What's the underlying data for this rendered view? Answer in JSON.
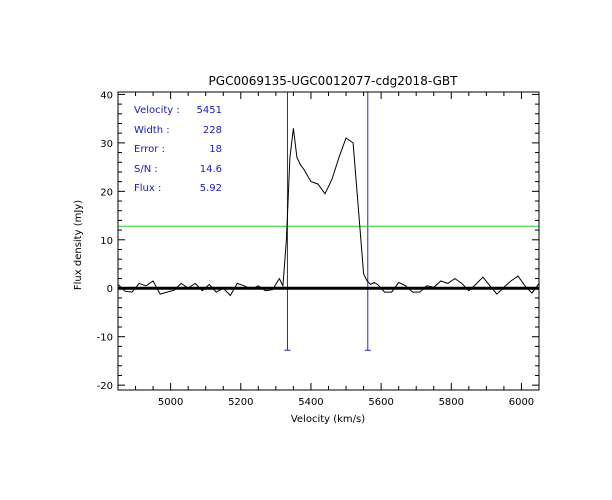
{
  "chart_data": {
    "type": "line",
    "title": "PGC0069135-UGC0012077-cdg2018-GBT",
    "xlabel": "Velocity (km/s)",
    "ylabel": "Flux density (mJy)",
    "xlim": [
      4850,
      6050
    ],
    "ylim": [
      -21,
      40.5
    ],
    "x_ticks": [
      5000,
      5200,
      5400,
      5600,
      5800,
      6000
    ],
    "y_ticks": [
      -20,
      -10,
      0,
      10,
      20,
      30,
      40
    ],
    "series": [
      {
        "name": "spectrum",
        "x": [
          4850,
          4870,
          4890,
          4910,
          4930,
          4950,
          4970,
          4990,
          5010,
          5030,
          5050,
          5070,
          5090,
          5110,
          5130,
          5150,
          5170,
          5190,
          5210,
          5230,
          5250,
          5270,
          5290,
          5310,
          5320,
          5330,
          5340,
          5350,
          5360,
          5370,
          5380,
          5400,
          5420,
          5440,
          5460,
          5480,
          5500,
          5520,
          5540,
          5550,
          5560,
          5570,
          5580,
          5590,
          5610,
          5630,
          5650,
          5670,
          5690,
          5710,
          5730,
          5750,
          5770,
          5790,
          5810,
          5830,
          5850,
          5870,
          5890,
          5910,
          5930,
          5950,
          5970,
          5990,
          6010,
          6030,
          6050
        ],
        "values": [
          0.8,
          -0.6,
          -0.8,
          1.0,
          0.5,
          1.5,
          -1.2,
          -0.8,
          -0.4,
          1.0,
          0.0,
          1.0,
          -0.5,
          0.8,
          -0.8,
          0.0,
          -1.5,
          1.0,
          0.5,
          -0.2,
          0.5,
          -0.5,
          -0.3,
          2.0,
          0.5,
          10.0,
          27.0,
          33.0,
          27.0,
          25.5,
          24.5,
          22.0,
          21.5,
          19.5,
          22.5,
          27.0,
          31.0,
          30.0,
          12.0,
          3.0,
          1.5,
          0.8,
          1.2,
          0.8,
          -0.8,
          -0.8,
          1.2,
          0.5,
          -0.8,
          -0.8,
          0.5,
          0.2,
          1.5,
          1.0,
          2.0,
          1.0,
          -0.5,
          0.8,
          2.3,
          0.5,
          -1.2,
          0.2,
          1.5,
          2.5,
          0.5,
          -1.0,
          1.0
        ]
      }
    ],
    "reference_lines": {
      "zero_level": 0,
      "half_peak_level": 12.8,
      "left_edge_velocity": 5333,
      "right_edge_velocity": 5562,
      "edge_marker_bottom": -12.8,
      "zero_color": "#000000",
      "half_peak_color": "#22cc22",
      "edge_color": "#3a1ea8",
      "spectrum_color": "#000000"
    },
    "info": [
      {
        "label": "Velocity :",
        "value": "5451"
      },
      {
        "label": "Width :",
        "value": "228"
      },
      {
        "label": "Error :",
        "value": "18"
      },
      {
        "label": "S/N :",
        "value": "14.6"
      },
      {
        "label": "Flux :",
        "value": "5.92"
      }
    ]
  }
}
